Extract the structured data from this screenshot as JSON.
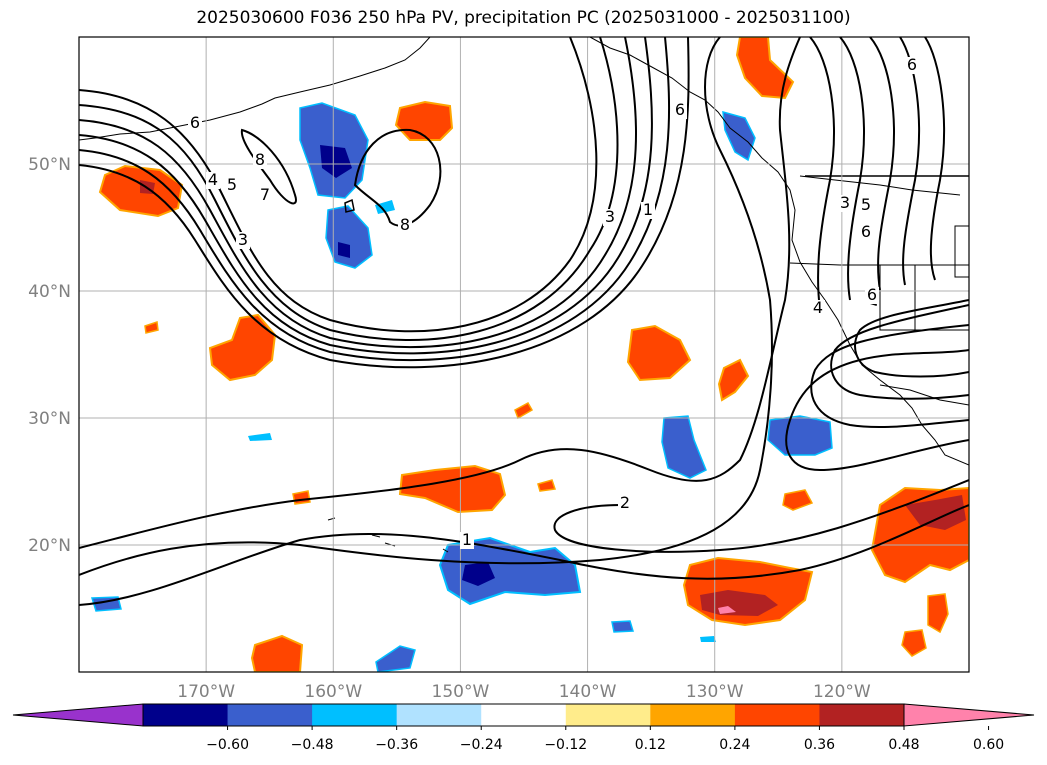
{
  "title": "2025030600 F036 250 hPa PV, precipitation PC (2025031000 - 2025031100)",
  "chart_data": {
    "type": "contour_map",
    "title": "2025030600 F036 250 hPa PV, precipitation PC (2025031000 - 2025031100)",
    "map_extent": {
      "lon": [
        -180,
        -110
      ],
      "lat": [
        10,
        60
      ]
    },
    "grid": true,
    "lon_ticks": [
      -170,
      -160,
      -150,
      -140,
      -130,
      -120
    ],
    "lon_tick_labels": [
      "170°W",
      "160°W",
      "150°W",
      "140°W",
      "130°W",
      "120°W"
    ],
    "lat_ticks": [
      20,
      30,
      40,
      50
    ],
    "lat_tick_labels": [
      "20°N",
      "30°N",
      "40°N",
      "50°N"
    ],
    "colorbar": {
      "orientation": "horizontal",
      "extend": "both",
      "levels": [
        -0.6,
        -0.48,
        -0.36,
        -0.24,
        -0.12,
        0.12,
        0.24,
        0.36,
        0.48,
        0.6
      ],
      "tick_labels": [
        "−0.60",
        "−0.48",
        "−0.36",
        "−0.24",
        "−0.12",
        "0.12",
        "0.24",
        "0.36",
        "0.48",
        "0.60"
      ],
      "colors": [
        "#9932cc",
        "#00008b",
        "#3a5fcd",
        "#00bfff",
        "#b0e2ff",
        "#ffffff",
        "#ffec8b",
        "#ffa500",
        "#ff4500",
        "#b22222",
        "#ff82ab"
      ]
    },
    "pv_contour_labels": [
      "1",
      "2",
      "3",
      "4",
      "5",
      "6",
      "7",
      "8"
    ]
  }
}
